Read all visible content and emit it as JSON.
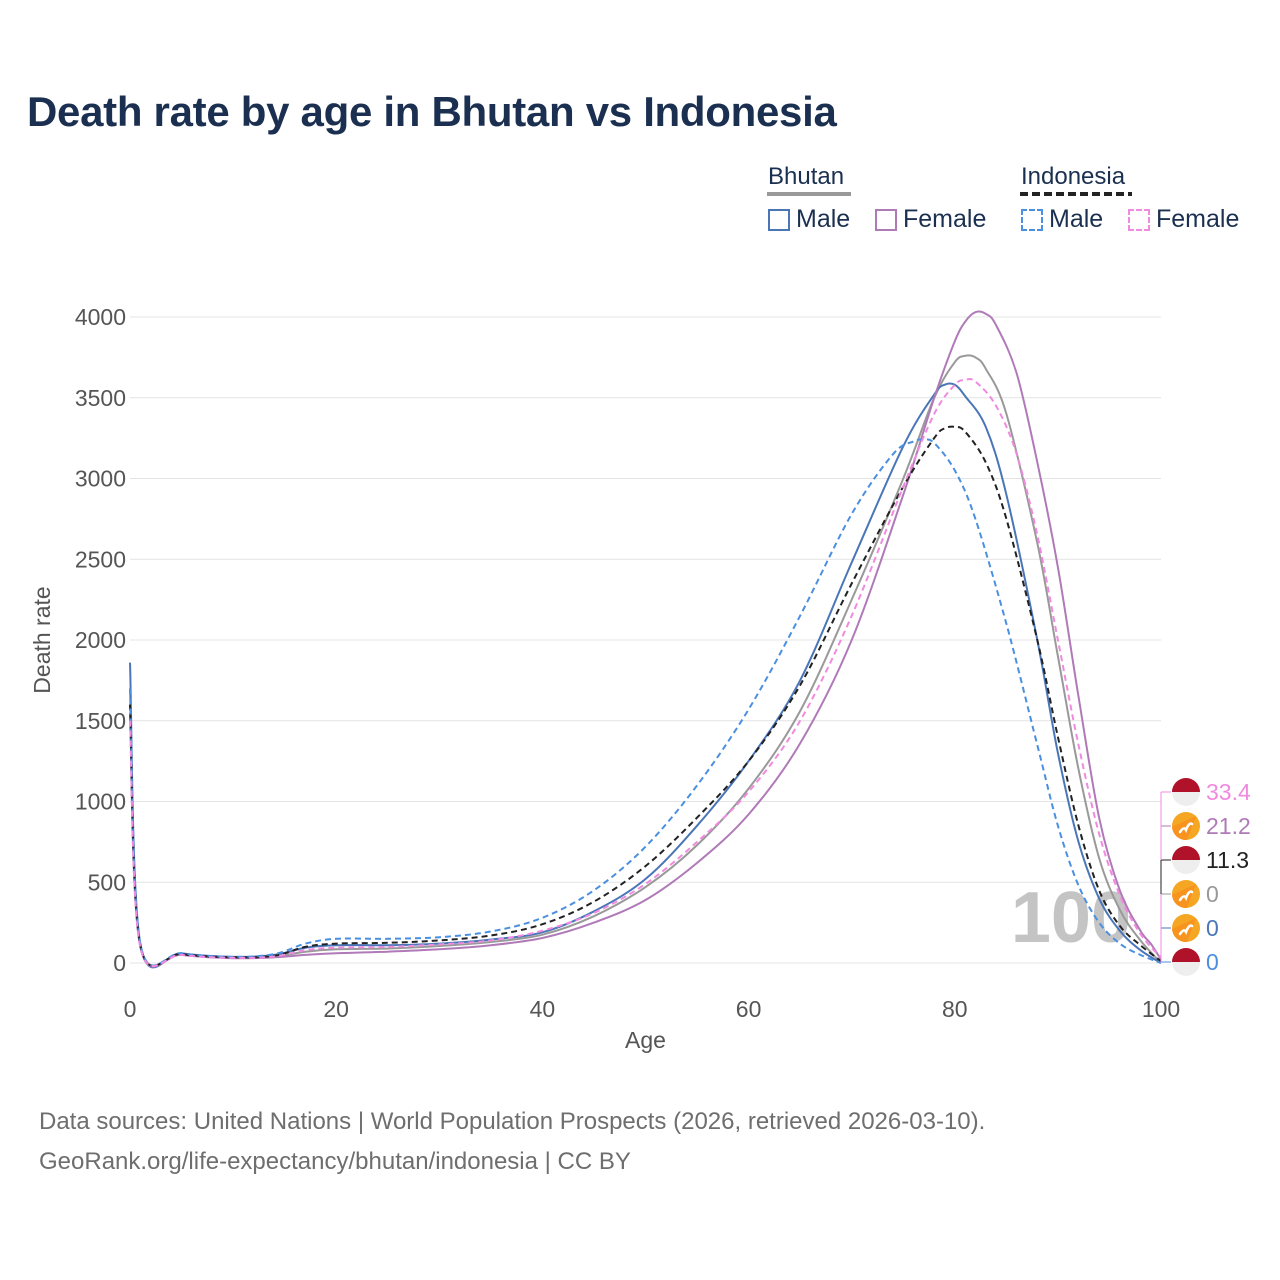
{
  "title": "Death rate by age in Bhutan vs Indonesia",
  "legend": {
    "groups": [
      {
        "name": "Bhutan",
        "underline_color": "#999999",
        "underline_dashed": false,
        "items": [
          {
            "label": "Male",
            "color": "#4a76b8",
            "dashed": false
          },
          {
            "label": "Female",
            "color": "#b07ab8",
            "dashed": false
          }
        ]
      },
      {
        "name": "Indonesia",
        "underline_color": "#222222",
        "underline_dashed": true,
        "items": [
          {
            "label": "Male",
            "color": "#4a8fe0",
            "dashed": true
          },
          {
            "label": "Female",
            "color": "#f08ae0",
            "dashed": true
          }
        ]
      }
    ]
  },
  "footer": {
    "line1": "Data sources: United Nations | World Population Prospects (2026, retrieved 2026-03-10).",
    "line2": "GeoRank.org/life-expectancy/bhutan/indonesia | CC BY"
  },
  "chart_data": {
    "type": "line",
    "title": "Death rate by age in Bhutan vs Indonesia",
    "xlabel": "Age",
    "ylabel": "Death rate",
    "xlim": [
      0,
      100
    ],
    "ylim": [
      0,
      4000
    ],
    "xticks": [
      0,
      20,
      40,
      60,
      80,
      100
    ],
    "yticks": [
      0,
      500,
      1000,
      1500,
      2000,
      2500,
      3000,
      3500,
      4000
    ],
    "grid": true,
    "age_marker": "100",
    "series": [
      {
        "name": "Bhutan Total",
        "country": "Bhutan",
        "color": "#999999",
        "dashed": false,
        "width": 2,
        "points": [
          [
            0,
            1700
          ],
          [
            1,
            110
          ],
          [
            5,
            55
          ],
          [
            10,
            35
          ],
          [
            14,
            40
          ],
          [
            17,
            70
          ],
          [
            20,
            85
          ],
          [
            25,
            90
          ],
          [
            30,
            105
          ],
          [
            35,
            130
          ],
          [
            40,
            175
          ],
          [
            45,
            290
          ],
          [
            50,
            470
          ],
          [
            55,
            730
          ],
          [
            60,
            1080
          ],
          [
            65,
            1560
          ],
          [
            70,
            2250
          ],
          [
            75,
            3000
          ],
          [
            78,
            3500
          ],
          [
            80,
            3720
          ],
          [
            81,
            3760
          ],
          [
            82,
            3750
          ],
          [
            83,
            3680
          ],
          [
            85,
            3400
          ],
          [
            88,
            2600
          ],
          [
            90,
            1900
          ],
          [
            92,
            1200
          ],
          [
            94,
            650
          ],
          [
            96,
            330
          ],
          [
            98,
            140
          ],
          [
            100,
            0
          ]
        ],
        "end_value": "0",
        "flag": "bhutan"
      },
      {
        "name": "Bhutan Male",
        "country": "Bhutan",
        "color": "#4a76b8",
        "dashed": false,
        "width": 2,
        "points": [
          [
            0,
            1860
          ],
          [
            1,
            120
          ],
          [
            5,
            60
          ],
          [
            10,
            38
          ],
          [
            14,
            50
          ],
          [
            17,
            95
          ],
          [
            20,
            110
          ],
          [
            25,
            110
          ],
          [
            30,
            120
          ],
          [
            35,
            145
          ],
          [
            40,
            190
          ],
          [
            45,
            320
          ],
          [
            50,
            520
          ],
          [
            55,
            850
          ],
          [
            60,
            1250
          ],
          [
            65,
            1750
          ],
          [
            70,
            2480
          ],
          [
            75,
            3200
          ],
          [
            78,
            3520
          ],
          [
            79,
            3580
          ],
          [
            80,
            3580
          ],
          [
            81,
            3510
          ],
          [
            83,
            3320
          ],
          [
            85,
            2900
          ],
          [
            88,
            2000
          ],
          [
            90,
            1300
          ],
          [
            92,
            750
          ],
          [
            94,
            400
          ],
          [
            96,
            200
          ],
          [
            98,
            80
          ],
          [
            100,
            0
          ]
        ],
        "end_value": "0",
        "flag": "bhutan"
      },
      {
        "name": "Bhutan Female",
        "country": "Bhutan",
        "color": "#b07ab8",
        "dashed": false,
        "width": 2,
        "points": [
          [
            0,
            1550
          ],
          [
            1,
            100
          ],
          [
            5,
            50
          ],
          [
            10,
            30
          ],
          [
            14,
            35
          ],
          [
            17,
            50
          ],
          [
            20,
            60
          ],
          [
            25,
            70
          ],
          [
            30,
            85
          ],
          [
            35,
            110
          ],
          [
            40,
            155
          ],
          [
            45,
            250
          ],
          [
            50,
            390
          ],
          [
            55,
            620
          ],
          [
            60,
            920
          ],
          [
            65,
            1360
          ],
          [
            70,
            2000
          ],
          [
            75,
            2900
          ],
          [
            78,
            3500
          ],
          [
            80,
            3850
          ],
          [
            81,
            3970
          ],
          [
            82,
            4030
          ],
          [
            83,
            4020
          ],
          [
            84,
            3950
          ],
          [
            86,
            3650
          ],
          [
            88,
            3100
          ],
          [
            90,
            2450
          ],
          [
            92,
            1650
          ],
          [
            94,
            900
          ],
          [
            96,
            450
          ],
          [
            98,
            200
          ],
          [
            99,
            120
          ],
          [
            100,
            21.2
          ]
        ],
        "end_value": "21.2",
        "flag": "bhutan"
      },
      {
        "name": "Indonesia Total",
        "country": "Indonesia",
        "color": "#222222",
        "dashed": true,
        "width": 2,
        "points": [
          [
            0,
            1600
          ],
          [
            1,
            110
          ],
          [
            5,
            55
          ],
          [
            10,
            35
          ],
          [
            14,
            45
          ],
          [
            17,
            100
          ],
          [
            20,
            120
          ],
          [
            25,
            125
          ],
          [
            30,
            140
          ],
          [
            35,
            170
          ],
          [
            40,
            240
          ],
          [
            45,
            380
          ],
          [
            50,
            600
          ],
          [
            55,
            900
          ],
          [
            60,
            1250
          ],
          [
            65,
            1720
          ],
          [
            70,
            2350
          ],
          [
            75,
            2950
          ],
          [
            78,
            3250
          ],
          [
            79,
            3310
          ],
          [
            80,
            3320
          ],
          [
            81,
            3290
          ],
          [
            83,
            3100
          ],
          [
            85,
            2750
          ],
          [
            88,
            2000
          ],
          [
            90,
            1400
          ],
          [
            92,
            850
          ],
          [
            94,
            450
          ],
          [
            96,
            230
          ],
          [
            98,
            110
          ],
          [
            100,
            11.3
          ]
        ],
        "end_value": "11.3",
        "flag": "indonesia"
      },
      {
        "name": "Indonesia Male",
        "country": "Indonesia",
        "color": "#4a8fe0",
        "dashed": true,
        "width": 2,
        "points": [
          [
            0,
            1700
          ],
          [
            1,
            120
          ],
          [
            5,
            60
          ],
          [
            10,
            38
          ],
          [
            14,
            55
          ],
          [
            17,
            120
          ],
          [
            20,
            150
          ],
          [
            25,
            150
          ],
          [
            30,
            160
          ],
          [
            35,
            195
          ],
          [
            40,
            280
          ],
          [
            45,
            450
          ],
          [
            50,
            720
          ],
          [
            55,
            1100
          ],
          [
            60,
            1570
          ],
          [
            65,
            2150
          ],
          [
            70,
            2780
          ],
          [
            74,
            3150
          ],
          [
            76,
            3230
          ],
          [
            77,
            3240
          ],
          [
            78,
            3220
          ],
          [
            80,
            3050
          ],
          [
            82,
            2750
          ],
          [
            85,
            2100
          ],
          [
            88,
            1350
          ],
          [
            90,
            850
          ],
          [
            92,
            480
          ],
          [
            94,
            250
          ],
          [
            96,
            120
          ],
          [
            98,
            50
          ],
          [
            100,
            0
          ]
        ],
        "end_value": "0",
        "flag": "indonesia"
      },
      {
        "name": "Indonesia Female",
        "country": "Indonesia",
        "color": "#f08ae0",
        "dashed": true,
        "width": 2,
        "points": [
          [
            0,
            1500
          ],
          [
            1,
            100
          ],
          [
            5,
            50
          ],
          [
            10,
            32
          ],
          [
            14,
            40
          ],
          [
            17,
            80
          ],
          [
            20,
            95
          ],
          [
            25,
            100
          ],
          [
            30,
            115
          ],
          [
            35,
            140
          ],
          [
            40,
            200
          ],
          [
            45,
            310
          ],
          [
            50,
            490
          ],
          [
            55,
            750
          ],
          [
            60,
            1060
          ],
          [
            65,
            1500
          ],
          [
            70,
            2150
          ],
          [
            75,
            2950
          ],
          [
            78,
            3400
          ],
          [
            80,
            3580
          ],
          [
            81,
            3610
          ],
          [
            82,
            3600
          ],
          [
            84,
            3450
          ],
          [
            86,
            3150
          ],
          [
            88,
            2650
          ],
          [
            90,
            2000
          ],
          [
            92,
            1350
          ],
          [
            94,
            800
          ],
          [
            96,
            420
          ],
          [
            98,
            180
          ],
          [
            100,
            33.4
          ]
        ],
        "end_value": "33.4",
        "flag": "indonesia"
      }
    ],
    "end_labels": [
      {
        "value": "33.4",
        "color": "#f08ae0",
        "flag": "indonesia"
      },
      {
        "value": "21.2",
        "color": "#b07ab8",
        "flag": "bhutan"
      },
      {
        "value": "11.3",
        "color": "#222222",
        "flag": "indonesia"
      },
      {
        "value": "0",
        "color": "#999999",
        "flag": "bhutan"
      },
      {
        "value": "0",
        "color": "#4a76b8",
        "flag": "bhutan"
      },
      {
        "value": "0",
        "color": "#4a8fe0",
        "flag": "indonesia"
      }
    ]
  }
}
